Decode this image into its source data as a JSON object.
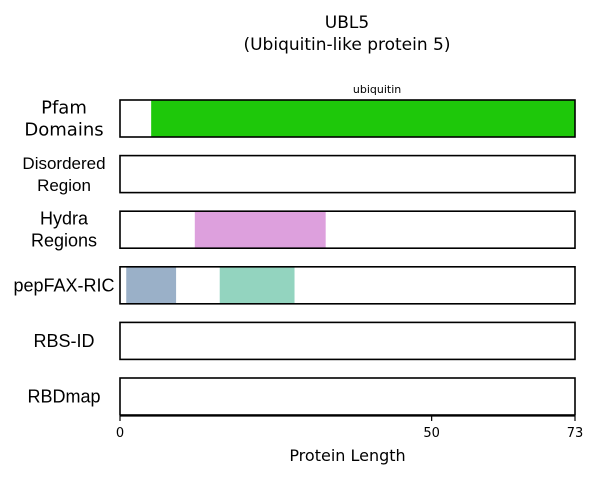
{
  "title_line1": "UBL5",
  "title_line2": "(Ubiquitin-like protein 5)",
  "chart_data": {
    "type": "protein-domain-tracks",
    "protein": "UBL5",
    "protein_full_name": "(Ubiquitin-like protein 5)",
    "protein_length": 73,
    "xlabel": "Protein Length",
    "xlim": [
      0,
      73
    ],
    "xticks": [
      0,
      50,
      73
    ],
    "tracks": [
      {
        "label_lines": [
          "Pfam",
          "Domains"
        ],
        "segments": [
          {
            "start": 5,
            "end": 73,
            "color": "#1ec80a",
            "label": "ubiquitin"
          }
        ]
      },
      {
        "label_lines": [
          "Disordered",
          "Region"
        ],
        "segments": []
      },
      {
        "label_lines": [
          "Hydra",
          "Regions"
        ],
        "segments": [
          {
            "start": 12,
            "end": 33,
            "color": "#dda0dd"
          }
        ]
      },
      {
        "label_lines": [
          "pepFAX-RIC"
        ],
        "segments": [
          {
            "start": 1,
            "end": 9,
            "color": "#9ab0c8"
          },
          {
            "start": 16,
            "end": 28,
            "color": "#93d4bf"
          }
        ]
      },
      {
        "label_lines": [
          "RBS-ID"
        ],
        "segments": []
      },
      {
        "label_lines": [
          "RBDmap"
        ],
        "segments": []
      }
    ]
  }
}
